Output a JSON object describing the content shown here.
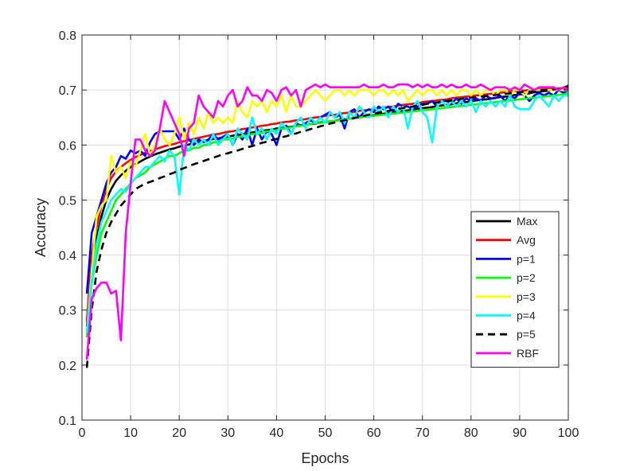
{
  "chart_data": {
    "type": "line",
    "title": "",
    "xlabel": "Epochs",
    "ylabel": "Accuracy",
    "xlim": [
      0,
      100
    ],
    "ylim": [
      0.1,
      0.8
    ],
    "xticks": [
      0,
      10,
      20,
      30,
      40,
      50,
      60,
      70,
      80,
      90,
      100
    ],
    "yticks": [
      0.1,
      0.2,
      0.3,
      0.4,
      0.5,
      0.6,
      0.7,
      0.8
    ],
    "xtick_labels": [
      "0",
      "10",
      "20",
      "30",
      "40",
      "50",
      "60",
      "70",
      "80",
      "90",
      "100"
    ],
    "ytick_labels": [
      "0.1",
      "0.2",
      "0.3",
      "0.4",
      "0.5",
      "0.6",
      "0.7",
      "0.8"
    ],
    "grid": true,
    "legend_position": "right",
    "x": [
      1,
      2,
      3,
      4,
      5,
      6,
      7,
      8,
      9,
      10,
      11,
      12,
      13,
      14,
      15,
      16,
      17,
      18,
      19,
      20,
      21,
      22,
      23,
      24,
      25,
      26,
      27,
      28,
      29,
      30,
      31,
      32,
      33,
      34,
      35,
      36,
      37,
      38,
      39,
      40,
      41,
      42,
      43,
      44,
      45,
      46,
      47,
      48,
      49,
      50,
      51,
      52,
      53,
      54,
      55,
      56,
      57,
      58,
      59,
      60,
      61,
      62,
      63,
      64,
      65,
      66,
      67,
      68,
      69,
      70,
      71,
      72,
      73,
      74,
      75,
      76,
      77,
      78,
      79,
      80,
      81,
      82,
      83,
      84,
      85,
      86,
      87,
      88,
      89,
      90,
      91,
      92,
      93,
      94,
      95,
      96,
      97,
      98,
      99,
      100
    ],
    "series": [
      {
        "name": "Max",
        "color": "#000000",
        "dash": "solid",
        "values": [
          0.27,
          0.38,
          0.43,
          0.47,
          0.5,
          0.52,
          0.535,
          0.545,
          0.553,
          0.56,
          0.565,
          0.57,
          0.575,
          0.579,
          0.583,
          0.586,
          0.589,
          0.592,
          0.594,
          0.597,
          0.599,
          0.601,
          0.603,
          0.605,
          0.607,
          0.609,
          0.611,
          0.612,
          0.614,
          0.615,
          0.617,
          0.618,
          0.62,
          0.621,
          0.623,
          0.624,
          0.626,
          0.627,
          0.628,
          0.63,
          0.631,
          0.632,
          0.633,
          0.635,
          0.636,
          0.637,
          0.638,
          0.639,
          0.641,
          0.642,
          0.643,
          0.644,
          0.646,
          0.647,
          0.648,
          0.649,
          0.651,
          0.652,
          0.653,
          0.654,
          0.656,
          0.657,
          0.658,
          0.659,
          0.661,
          0.662,
          0.663,
          0.664,
          0.666,
          0.667,
          0.668,
          0.669,
          0.671,
          0.672,
          0.673,
          0.674,
          0.676,
          0.677,
          0.678,
          0.679,
          0.681,
          0.682,
          0.683,
          0.684,
          0.686,
          0.687,
          0.688,
          0.689,
          0.691,
          0.692,
          0.693,
          0.694,
          0.696,
          0.697,
          0.698,
          0.699,
          0.701,
          0.702,
          0.704,
          0.708
        ]
      },
      {
        "name": "Avg",
        "color": "#ff0000",
        "dash": "solid",
        "values": [
          0.28,
          0.4,
          0.45,
          0.49,
          0.52,
          0.54,
          0.552,
          0.56,
          0.567,
          0.573,
          0.578,
          0.582,
          0.586,
          0.589,
          0.592,
          0.595,
          0.598,
          0.6,
          0.602,
          0.605,
          0.607,
          0.609,
          0.611,
          0.613,
          0.615,
          0.617,
          0.619,
          0.62,
          0.622,
          0.624,
          0.625,
          0.627,
          0.629,
          0.63,
          0.632,
          0.633,
          0.635,
          0.636,
          0.638,
          0.639,
          0.641,
          0.642,
          0.643,
          0.645,
          0.646,
          0.647,
          0.649,
          0.65,
          0.651,
          0.653,
          0.654,
          0.655,
          0.657,
          0.658,
          0.659,
          0.66,
          0.662,
          0.663,
          0.664,
          0.665,
          0.667,
          0.668,
          0.669,
          0.67,
          0.672,
          0.673,
          0.674,
          0.675,
          0.676,
          0.678,
          0.679,
          0.68,
          0.681,
          0.682,
          0.683,
          0.685,
          0.686,
          0.687,
          0.688,
          0.689,
          0.69,
          0.691,
          0.692,
          0.693,
          0.694,
          0.695,
          0.696,
          0.697,
          0.698,
          0.699,
          0.699,
          0.7,
          0.7,
          0.701,
          0.701,
          0.702,
          0.702,
          0.703,
          0.703,
          0.704
        ]
      },
      {
        "name": "p=1",
        "color": "#0000ff",
        "dash": "solid",
        "values": [
          0.33,
          0.44,
          0.47,
          0.5,
          0.53,
          0.55,
          0.56,
          0.58,
          0.575,
          0.59,
          0.585,
          0.59,
          0.58,
          0.605,
          0.62,
          0.625,
          0.625,
          0.625,
          0.625,
          0.61,
          0.63,
          0.61,
          0.6,
          0.61,
          0.605,
          0.61,
          0.62,
          0.61,
          0.615,
          0.62,
          0.6,
          0.62,
          0.61,
          0.63,
          0.6,
          0.63,
          0.61,
          0.625,
          0.62,
          0.6,
          0.63,
          0.635,
          0.62,
          0.64,
          0.635,
          0.64,
          0.645,
          0.64,
          0.65,
          0.655,
          0.66,
          0.65,
          0.655,
          0.63,
          0.66,
          0.665,
          0.65,
          0.66,
          0.665,
          0.66,
          0.67,
          0.665,
          0.67,
          0.66,
          0.675,
          0.67,
          0.67,
          0.665,
          0.67,
          0.675,
          0.675,
          0.68,
          0.67,
          0.68,
          0.68,
          0.675,
          0.685,
          0.675,
          0.685,
          0.68,
          0.685,
          0.68,
          0.69,
          0.685,
          0.685,
          0.69,
          0.68,
          0.69,
          0.685,
          0.695,
          0.69,
          0.68,
          0.69,
          0.695,
          0.69,
          0.695,
          0.69,
          0.7,
          0.695,
          0.7
        ]
      },
      {
        "name": "p=2",
        "color": "#00ff00",
        "dash": "solid",
        "values": [
          0.25,
          0.35,
          0.4,
          0.44,
          0.46,
          0.48,
          0.5,
          0.51,
          0.52,
          0.53,
          0.54,
          0.545,
          0.55,
          0.56,
          0.565,
          0.57,
          0.575,
          0.58,
          0.58,
          0.585,
          0.59,
          0.59,
          0.595,
          0.595,
          0.6,
          0.6,
          0.605,
          0.605,
          0.61,
          0.61,
          0.612,
          0.615,
          0.615,
          0.618,
          0.62,
          0.62,
          0.622,
          0.625,
          0.625,
          0.627,
          0.63,
          0.63,
          0.632,
          0.634,
          0.635,
          0.636,
          0.638,
          0.64,
          0.64,
          0.641,
          0.643,
          0.644,
          0.645,
          0.646,
          0.648,
          0.649,
          0.65,
          0.651,
          0.652,
          0.653,
          0.654,
          0.655,
          0.656,
          0.657,
          0.658,
          0.659,
          0.66,
          0.661,
          0.662,
          0.663,
          0.664,
          0.665,
          0.666,
          0.667,
          0.668,
          0.669,
          0.67,
          0.671,
          0.672,
          0.673,
          0.674,
          0.675,
          0.676,
          0.677,
          0.678,
          0.679,
          0.68,
          0.681,
          0.682,
          0.683,
          0.684,
          0.685,
          0.686,
          0.687,
          0.688,
          0.689,
          0.69,
          0.691,
          0.692,
          0.694
        ]
      },
      {
        "name": "p=3",
        "color": "#ffff00",
        "dash": "solid",
        "values": [
          0.26,
          0.37,
          0.47,
          0.49,
          0.5,
          0.58,
          0.55,
          0.56,
          0.54,
          0.57,
          0.56,
          0.59,
          0.62,
          0.58,
          0.6,
          0.63,
          0.61,
          0.6,
          0.62,
          0.65,
          0.61,
          0.64,
          0.62,
          0.65,
          0.63,
          0.66,
          0.64,
          0.65,
          0.64,
          0.65,
          0.64,
          0.68,
          0.66,
          0.65,
          0.68,
          0.67,
          0.68,
          0.66,
          0.68,
          0.67,
          0.69,
          0.66,
          0.69,
          0.67,
          0.67,
          0.68,
          0.69,
          0.7,
          0.69,
          0.68,
          0.69,
          0.7,
          0.7,
          0.69,
          0.7,
          0.69,
          0.7,
          0.7,
          0.7,
          0.69,
          0.7,
          0.7,
          0.69,
          0.7,
          0.69,
          0.7,
          0.68,
          0.69,
          0.7,
          0.69,
          0.7,
          0.7,
          0.69,
          0.7,
          0.69,
          0.7,
          0.69,
          0.7,
          0.7,
          0.69,
          0.7,
          0.69,
          0.7,
          0.7,
          0.69,
          0.7,
          0.7,
          0.69,
          0.7,
          0.7,
          0.69,
          0.7,
          0.7,
          0.7,
          0.7,
          0.7,
          0.7,
          0.7,
          0.7,
          0.7
        ]
      },
      {
        "name": "p=4",
        "color": "#00ffff",
        "dash": "solid",
        "values": [
          0.26,
          0.35,
          0.42,
          0.46,
          0.48,
          0.5,
          0.51,
          0.52,
          0.515,
          0.53,
          0.54,
          0.55,
          0.56,
          0.56,
          0.57,
          0.58,
          0.57,
          0.59,
          0.58,
          0.51,
          0.6,
          0.59,
          0.61,
          0.6,
          0.61,
          0.6,
          0.62,
          0.6,
          0.61,
          0.62,
          0.6,
          0.63,
          0.62,
          0.61,
          0.65,
          0.62,
          0.63,
          0.61,
          0.63,
          0.62,
          0.64,
          0.63,
          0.62,
          0.64,
          0.65,
          0.63,
          0.65,
          0.64,
          0.65,
          0.64,
          0.66,
          0.65,
          0.66,
          0.64,
          0.66,
          0.65,
          0.67,
          0.66,
          0.65,
          0.67,
          0.66,
          0.67,
          0.65,
          0.67,
          0.66,
          0.67,
          0.63,
          0.67,
          0.68,
          0.66,
          0.65,
          0.605,
          0.67,
          0.68,
          0.67,
          0.68,
          0.67,
          0.68,
          0.67,
          0.68,
          0.66,
          0.68,
          0.67,
          0.68,
          0.67,
          0.68,
          0.67,
          0.69,
          0.67,
          0.665,
          0.665,
          0.665,
          0.68,
          0.69,
          0.68,
          0.67,
          0.69,
          0.68,
          0.69,
          0.69
        ]
      },
      {
        "name": "p=5",
        "color": "#000000",
        "dash": "dashed",
        "values": [
          0.195,
          0.3,
          0.37,
          0.41,
          0.44,
          0.46,
          0.475,
          0.49,
          0.5,
          0.51,
          0.52,
          0.525,
          0.53,
          0.533,
          0.536,
          0.54,
          0.543,
          0.547,
          0.55,
          0.555,
          0.558,
          0.562,
          0.565,
          0.568,
          0.571,
          0.574,
          0.577,
          0.58,
          0.583,
          0.585,
          0.588,
          0.59,
          0.593,
          0.596,
          0.598,
          0.601,
          0.604,
          0.606,
          0.609,
          0.611,
          0.614,
          0.616,
          0.619,
          0.621,
          0.624,
          0.626,
          0.629,
          0.631,
          0.634,
          0.636,
          0.639,
          0.641,
          0.643,
          0.645,
          0.647,
          0.649,
          0.651,
          0.653,
          0.655,
          0.657,
          0.659,
          0.661,
          0.662,
          0.664,
          0.666,
          0.667,
          0.669,
          0.67,
          0.672,
          0.673,
          0.675,
          0.676,
          0.677,
          0.679,
          0.68,
          0.681,
          0.682,
          0.684,
          0.685,
          0.686,
          0.687,
          0.688,
          0.689,
          0.69,
          0.691,
          0.692,
          0.693,
          0.694,
          0.695,
          0.696,
          0.697,
          0.697,
          0.698,
          0.699,
          0.7,
          0.7,
          0.701,
          0.702,
          0.702,
          0.703
        ]
      },
      {
        "name": "RBF",
        "color": "#ff00ff",
        "dash": "solid",
        "values": [
          0.21,
          0.32,
          0.34,
          0.35,
          0.35,
          0.33,
          0.335,
          0.245,
          0.44,
          0.53,
          0.61,
          0.61,
          0.59,
          0.58,
          0.59,
          0.63,
          0.68,
          0.66,
          0.64,
          0.62,
          0.58,
          0.63,
          0.64,
          0.69,
          0.67,
          0.66,
          0.65,
          0.68,
          0.67,
          0.69,
          0.7,
          0.67,
          0.68,
          0.705,
          0.69,
          0.69,
          0.68,
          0.7,
          0.695,
          0.68,
          0.7,
          0.705,
          0.69,
          0.7,
          0.67,
          0.7,
          0.705,
          0.71,
          0.705,
          0.71,
          0.705,
          0.705,
          0.705,
          0.705,
          0.705,
          0.705,
          0.705,
          0.71,
          0.705,
          0.705,
          0.705,
          0.71,
          0.705,
          0.705,
          0.71,
          0.71,
          0.71,
          0.705,
          0.71,
          0.705,
          0.71,
          0.705,
          0.705,
          0.71,
          0.705,
          0.71,
          0.705,
          0.705,
          0.71,
          0.705,
          0.705,
          0.71,
          0.705,
          0.7,
          0.705,
          0.705,
          0.705,
          0.7,
          0.705,
          0.7,
          0.71,
          0.705,
          0.7,
          0.705,
          0.705,
          0.705,
          0.705,
          0.7,
          0.705,
          0.7
        ]
      }
    ]
  }
}
